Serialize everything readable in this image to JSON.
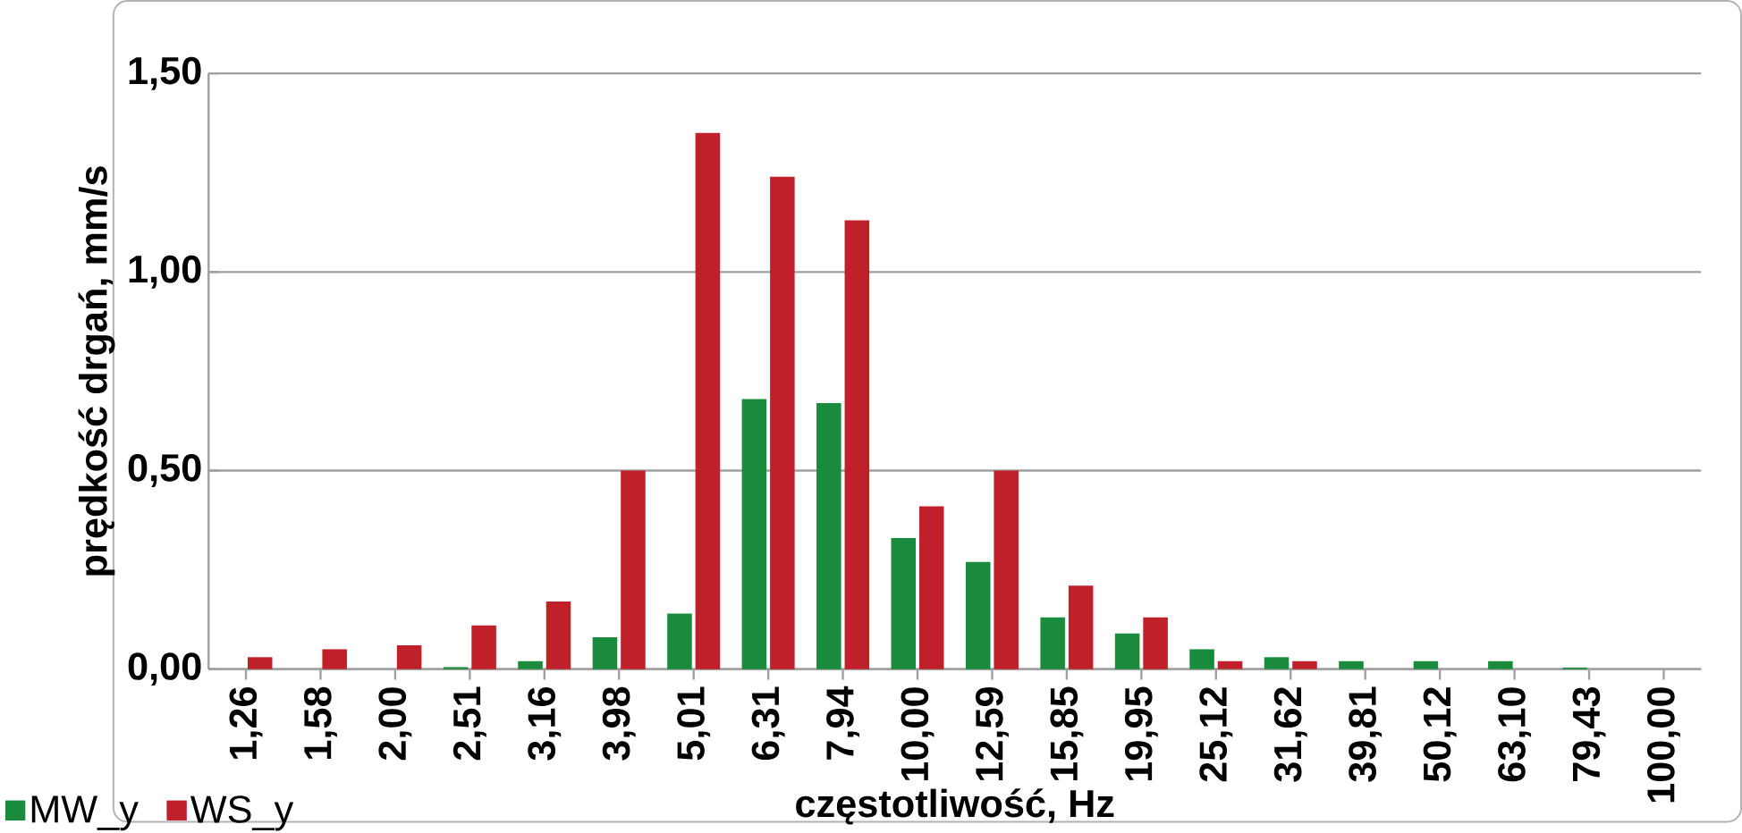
{
  "chart_data": {
    "type": "bar",
    "xlabel": "częstotliwość, Hz",
    "ylabel": "prędkość drgań, mm/s",
    "categories": [
      "1,26",
      "1,58",
      "2,00",
      "2,51",
      "3,16",
      "3,98",
      "5,01",
      "6,31",
      "7,94",
      "10,00",
      "12,59",
      "15,85",
      "19,95",
      "25,12",
      "31,62",
      "39,81",
      "50,12",
      "63,10",
      "79,43",
      "100,00"
    ],
    "series": [
      {
        "name": "MW_y",
        "color": "#1a8a3c",
        "values": [
          0,
          0,
          0,
          0.005,
          0.02,
          0.08,
          0.14,
          0.68,
          0.67,
          0.33,
          0.27,
          0.13,
          0.09,
          0.05,
          0.03,
          0.02,
          0.02,
          0.02,
          0.004,
          0
        ]
      },
      {
        "name": "WS_y",
        "color": "#c0202a",
        "values": [
          0.03,
          0.05,
          0.06,
          0.11,
          0.17,
          0.5,
          1.35,
          1.24,
          1.13,
          0.41,
          0.5,
          0.21,
          0.13,
          0.02,
          0.02,
          0,
          0,
          0,
          0,
          0
        ]
      }
    ],
    "ylim": [
      0,
      1.5
    ],
    "yticks": [
      {
        "value": 0,
        "label": "0,00"
      },
      {
        "value": 0.5,
        "label": "0,50"
      },
      {
        "value": 1,
        "label": "1,00"
      },
      {
        "value": 1.5,
        "label": "1,50"
      }
    ],
    "grid": "y",
    "legend": "bottom left"
  }
}
